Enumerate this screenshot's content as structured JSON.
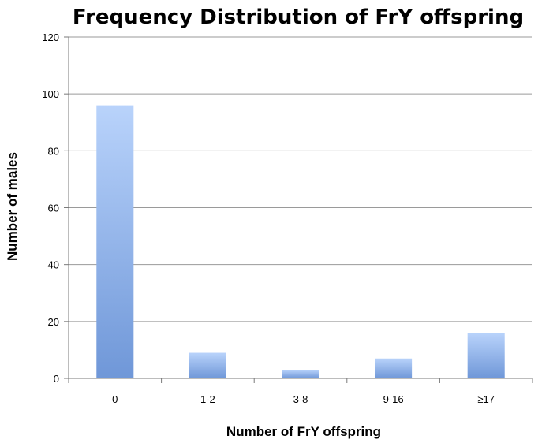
{
  "chart_data": {
    "type": "bar",
    "title": "Frequency Distribution of FrY offspring",
    "xlabel": "Number of FrY offspring",
    "ylabel": "Number of males",
    "categories": [
      "0",
      "1-2",
      "3-8",
      "9-16",
      "≥17"
    ],
    "values": [
      96,
      9,
      3,
      7,
      16
    ],
    "ylim": [
      0,
      120
    ],
    "yticks": [
      "0",
      "20",
      "40",
      "60",
      "80",
      "100",
      "120"
    ],
    "grid": true,
    "legend": "none",
    "colors": {
      "bar_top": "#b9d3fb",
      "bar_bottom": "#6f97d8",
      "grid": "#9a9a9a"
    }
  }
}
